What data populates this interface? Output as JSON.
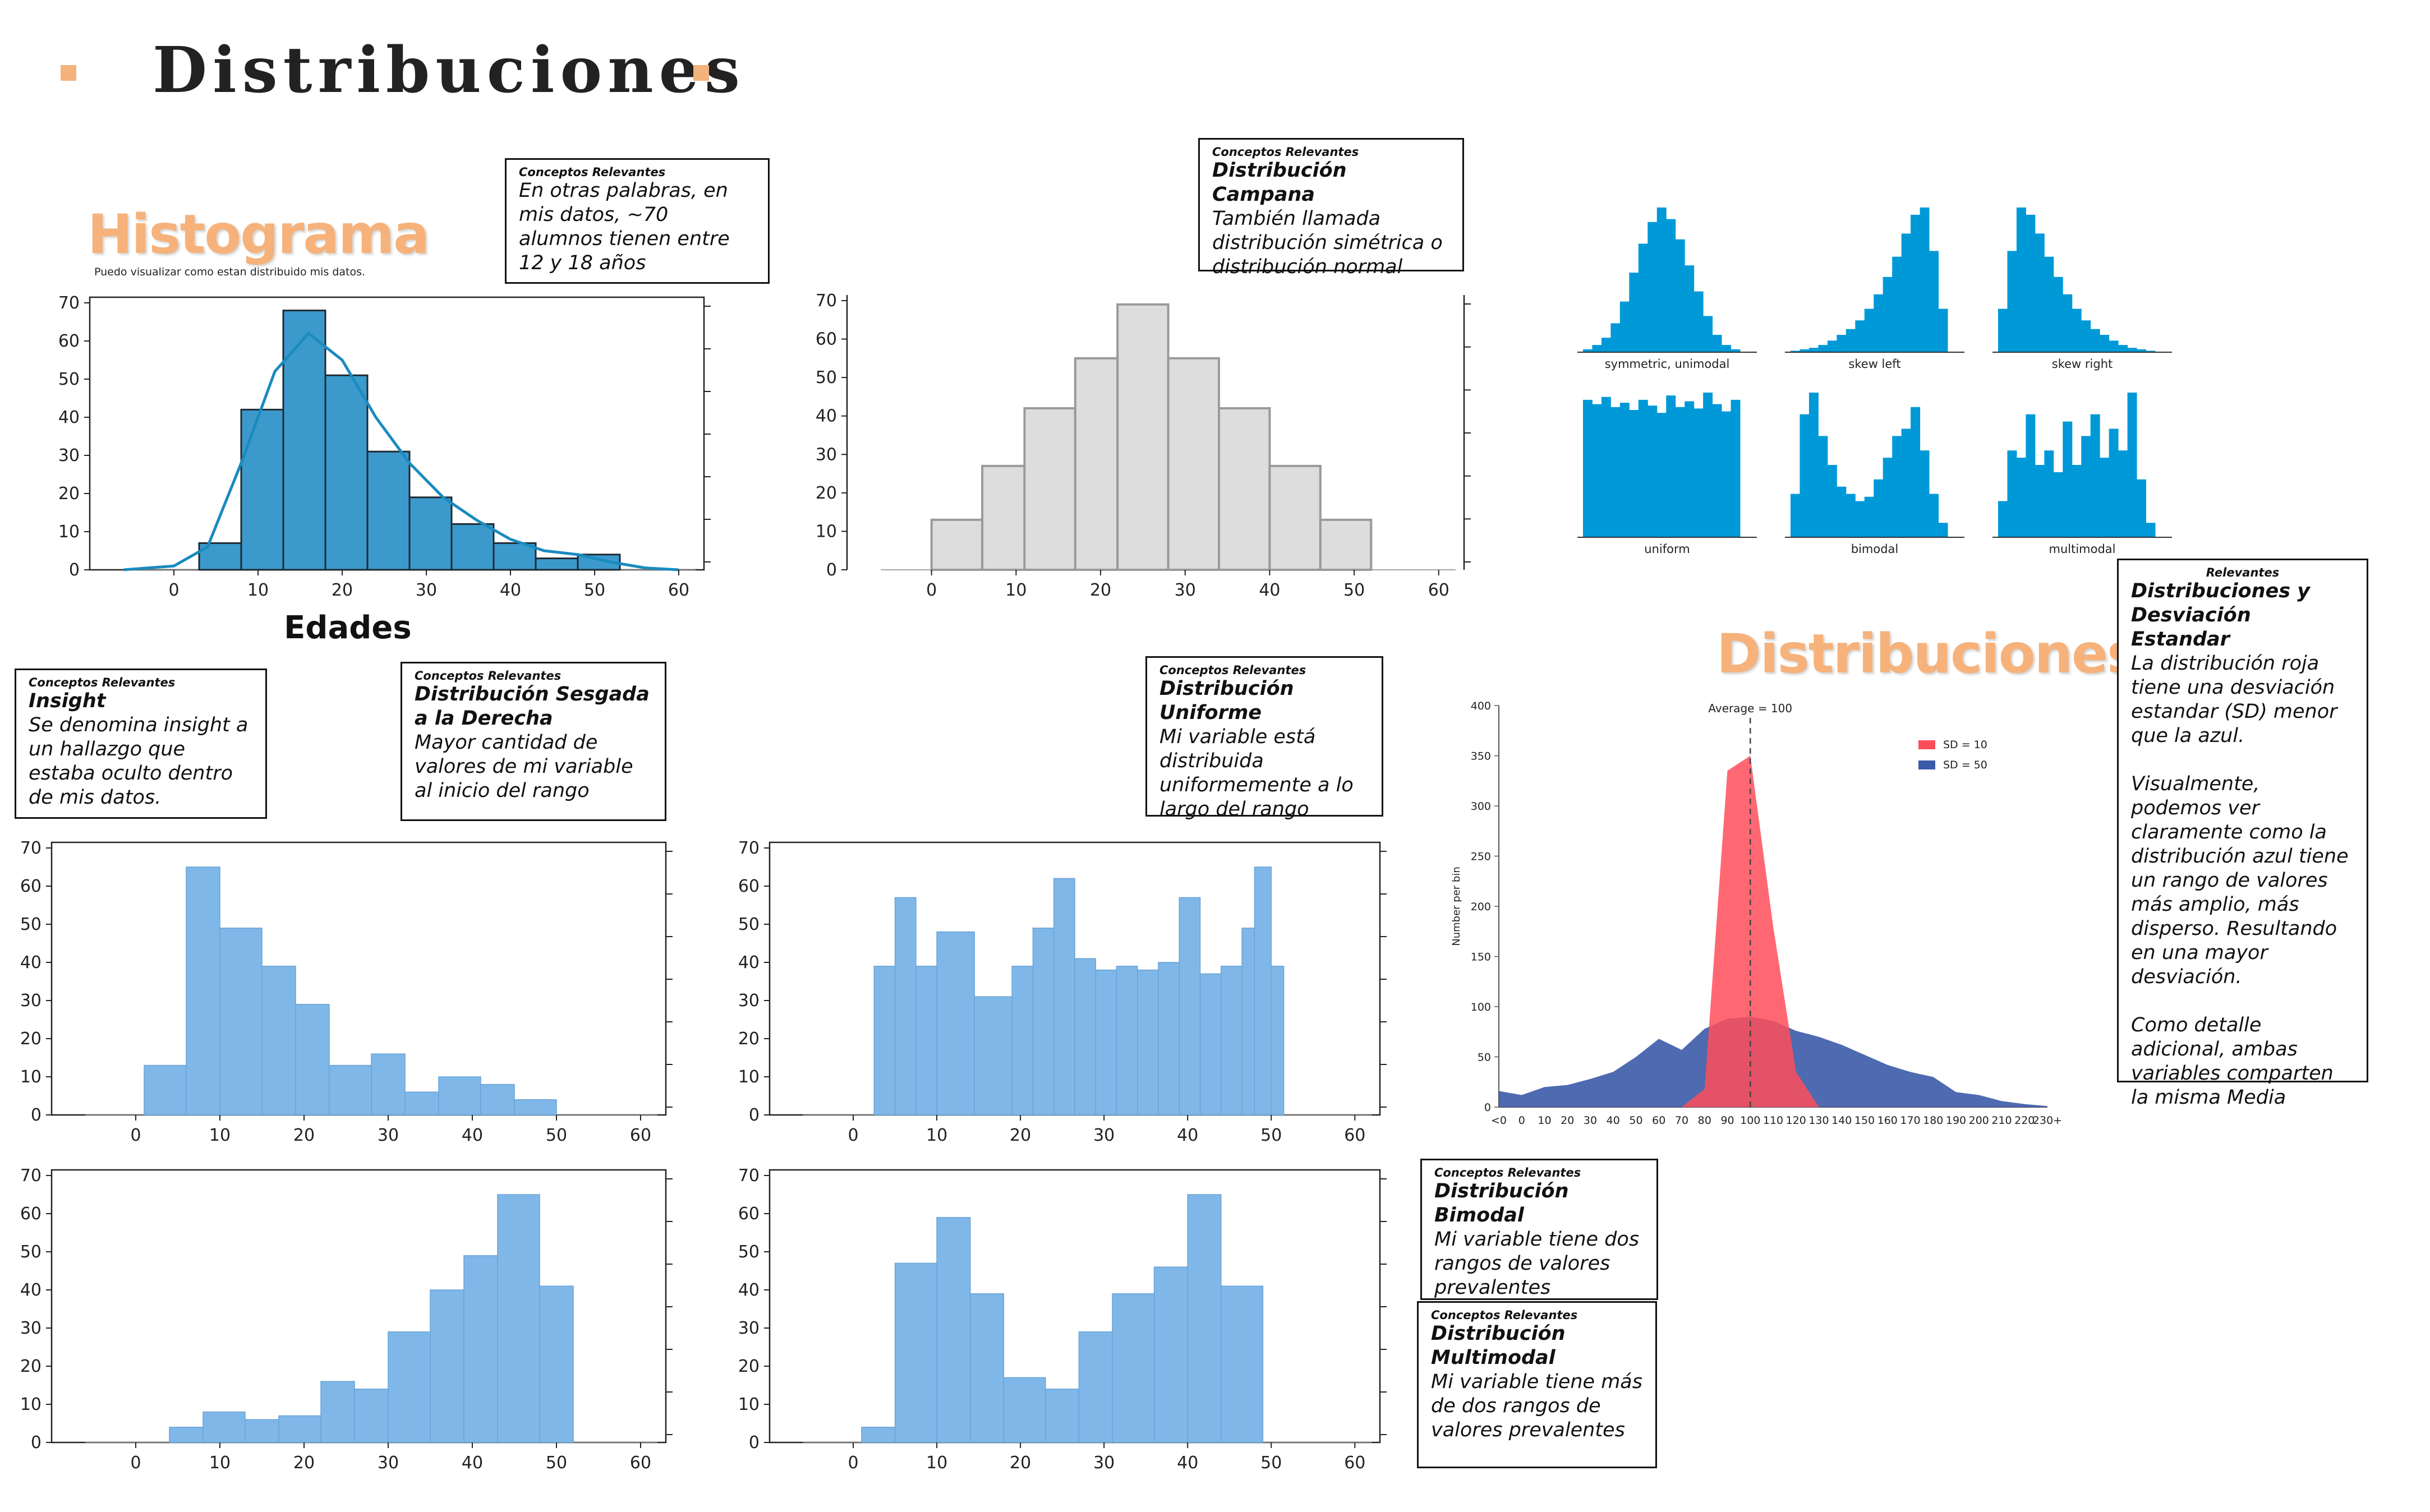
{
  "page": {
    "title": "Distribuciones"
  },
  "histogram_section": {
    "heading": "Histograma",
    "subtitle": "Puedo visualizar como estan distribuido mis datos."
  },
  "distributions_section": {
    "heading": "Distribuciones"
  },
  "boxes": {
    "histograma": {
      "label": "Conceptos Relevantes",
      "title": "",
      "text": "En otras palabras, en mis datos, ~70 alumnos tienen entre 12 y 18 años"
    },
    "campana": {
      "label": "Conceptos Relevantes",
      "title": "Distribución Campana",
      "text": "También llamada distribución simétrica o distribución normal"
    },
    "insight": {
      "label": "Conceptos Relevantes",
      "title": "Insight",
      "text": "Se denomina insight a un hallazgo que estaba oculto dentro de mis datos."
    },
    "sesgada": {
      "label": "Conceptos Relevantes",
      "title": "Distribución Sesgada a la Derecha",
      "text": "Mayor cantidad de valores de mi variable al inicio del rango"
    },
    "uniforme": {
      "label": "Conceptos Relevantes",
      "title": "Distribución Uniforme",
      "text": "Mi variable está distribuida uniformemente a lo largo del rango"
    },
    "bimodal": {
      "label": "Conceptos Relevantes",
      "title": "Distribución Bimodal",
      "text": "Mi variable tiene dos rangos de valores prevalentes"
    },
    "multimodal": {
      "label": "Conceptos Relevantes",
      "title": "Distribución Multimodal",
      "text": "Mi variable tiene más de dos rangos de valores prevalentes"
    },
    "desviacion": {
      "label": "Relevantes",
      "title": "Distribuciones y Desviación Estandar",
      "text": "La distribución roja tiene una desviación estandar (SD) menor que la azul.\n\nVisualmente,  podemos ver claramente como la distribución azul tiene un rango de valores más amplio, más disperso. Resultando en una mayor desviación.\n\nComo detalle adicional, ambas variables comparten la misma Media"
    }
  },
  "colors": {
    "accent_orange": "#f6b27a",
    "hist_blue": "#3b9acb",
    "light_blue": "#7fb8e8",
    "gray_bar": "#dddddd",
    "shape_blue": "#0099d8",
    "red": "#ff4d5a",
    "navy": "#3b5aa8"
  },
  "chart_data": [
    {
      "id": "histograma",
      "type": "bar",
      "xlabel": "Edades",
      "x_ticks": [
        0,
        10,
        20,
        30,
        40,
        50,
        60
      ],
      "y_ticks": [
        0,
        10,
        20,
        30,
        40,
        50,
        60,
        70
      ],
      "bins": [
        [
          3,
          8,
          7
        ],
        [
          8,
          13,
          42
        ],
        [
          13,
          18,
          68
        ],
        [
          18,
          23,
          51
        ],
        [
          23,
          28,
          31
        ],
        [
          28,
          33,
          19
        ],
        [
          33,
          38,
          12
        ],
        [
          38,
          43,
          7
        ],
        [
          43,
          48,
          3
        ],
        [
          48,
          53,
          4
        ]
      ],
      "kde": [
        [
          -6,
          0
        ],
        [
          0,
          1
        ],
        [
          4,
          6
        ],
        [
          8,
          28
        ],
        [
          12,
          52
        ],
        [
          16,
          62
        ],
        [
          20,
          55
        ],
        [
          24,
          40
        ],
        [
          28,
          28
        ],
        [
          32,
          19
        ],
        [
          36,
          13
        ],
        [
          40,
          8
        ],
        [
          44,
          5
        ],
        [
          48,
          4
        ],
        [
          52,
          2
        ],
        [
          56,
          0.5
        ],
        [
          60,
          0
        ]
      ]
    },
    {
      "id": "campana",
      "type": "bar",
      "x_ticks": [
        0,
        10,
        20,
        30,
        40,
        50,
        60
      ],
      "y_ticks": [
        0,
        10,
        20,
        30,
        40,
        50,
        60,
        70
      ],
      "bins": [
        [
          0,
          6,
          13
        ],
        [
          6,
          11,
          27
        ],
        [
          11,
          17,
          42
        ],
        [
          17,
          22,
          55
        ],
        [
          22,
          28,
          69
        ],
        [
          28,
          34,
          55
        ],
        [
          34,
          40,
          42
        ],
        [
          40,
          46,
          27
        ],
        [
          46,
          52,
          13
        ]
      ]
    },
    {
      "id": "sesgada",
      "type": "bar",
      "x_ticks": [
        0,
        10,
        20,
        30,
        40,
        50,
        60
      ],
      "y_ticks": [
        0,
        10,
        20,
        30,
        40,
        50,
        60,
        70
      ],
      "bins": [
        [
          1,
          6,
          13
        ],
        [
          6,
          10,
          65
        ],
        [
          10,
          15,
          49
        ],
        [
          15,
          19,
          39
        ],
        [
          19,
          23,
          29
        ],
        [
          23,
          28,
          13
        ],
        [
          28,
          32,
          16
        ],
        [
          32,
          36,
          6
        ],
        [
          36,
          41,
          10
        ],
        [
          41,
          45,
          8
        ],
        [
          45,
          50,
          4
        ]
      ]
    },
    {
      "id": "uniforme",
      "type": "bar",
      "x_ticks": [
        0,
        10,
        20,
        30,
        40,
        50,
        60
      ],
      "y_ticks": [
        0,
        10,
        20,
        30,
        40,
        50,
        60,
        70
      ],
      "bins": [
        [
          2.5,
          5,
          39
        ],
        [
          5,
          7.5,
          57
        ],
        [
          7.5,
          10,
          39
        ],
        [
          10,
          14.5,
          48
        ],
        [
          14.5,
          19,
          31
        ],
        [
          19,
          21.5,
          39
        ],
        [
          21.5,
          24,
          49
        ],
        [
          24,
          26.5,
          62
        ],
        [
          26.5,
          29,
          41
        ],
        [
          29,
          31.5,
          38
        ],
        [
          31.5,
          34,
          39
        ],
        [
          34,
          36.5,
          38
        ],
        [
          36.5,
          39,
          40
        ],
        [
          39,
          41.5,
          57
        ],
        [
          41.5,
          44,
          37
        ],
        [
          44,
          46.5,
          39
        ],
        [
          46.5,
          48,
          49
        ],
        [
          48,
          50,
          65
        ],
        [
          50,
          51.5,
          39
        ]
      ]
    },
    {
      "id": "sesgada_izquierda",
      "type": "bar",
      "x_ticks": [
        0,
        10,
        20,
        30,
        40,
        50,
        60
      ],
      "y_ticks": [
        0,
        10,
        20,
        30,
        40,
        50,
        60,
        70
      ],
      "bins": [
        [
          4,
          8,
          4
        ],
        [
          8,
          13,
          8
        ],
        [
          13,
          17,
          6
        ],
        [
          17,
          22,
          7
        ],
        [
          22,
          26,
          16
        ],
        [
          26,
          30,
          14
        ],
        [
          30,
          35,
          29
        ],
        [
          35,
          39,
          40
        ],
        [
          39,
          43,
          49
        ],
        [
          43,
          48,
          65
        ],
        [
          48,
          52,
          41
        ]
      ]
    },
    {
      "id": "bimodal",
      "type": "bar",
      "x_ticks": [
        0,
        10,
        20,
        30,
        40,
        50,
        60
      ],
      "y_ticks": [
        0,
        10,
        20,
        30,
        40,
        50,
        60,
        70
      ],
      "bins": [
        [
          1,
          5,
          4
        ],
        [
          5,
          10,
          47
        ],
        [
          10,
          14,
          59
        ],
        [
          14,
          18,
          39
        ],
        [
          18,
          23,
          17
        ],
        [
          23,
          27,
          14
        ],
        [
          27,
          31,
          29
        ],
        [
          31,
          36,
          39
        ],
        [
          36,
          40,
          46
        ],
        [
          40,
          44,
          65
        ],
        [
          44,
          49,
          41
        ]
      ]
    },
    {
      "id": "formas",
      "type": "bar",
      "panels": [
        {
          "label": "symmetric, unimodal",
          "values": [
            0.02,
            0.05,
            0.1,
            0.2,
            0.35,
            0.55,
            0.75,
            0.9,
            1.0,
            0.92,
            0.78,
            0.6,
            0.42,
            0.25,
            0.12,
            0.05,
            0.02
          ]
        },
        {
          "label": "skew left",
          "values": [
            0.01,
            0.02,
            0.03,
            0.05,
            0.08,
            0.12,
            0.16,
            0.22,
            0.3,
            0.4,
            0.52,
            0.66,
            0.82,
            0.95,
            1.0,
            0.7,
            0.3
          ]
        },
        {
          "label": "skew right",
          "values": [
            0.3,
            0.7,
            1.0,
            0.95,
            0.82,
            0.66,
            0.52,
            0.4,
            0.3,
            0.22,
            0.16,
            0.12,
            0.08,
            0.05,
            0.03,
            0.02,
            0.01
          ]
        },
        {
          "label": "uniform",
          "values": [
            0.95,
            0.92,
            0.97,
            0.9,
            0.93,
            0.88,
            0.95,
            0.91,
            0.86,
            0.98,
            0.9,
            0.94,
            0.89,
            1.0,
            0.92,
            0.87,
            0.95
          ]
        },
        {
          "label": "bimodal",
          "values": [
            0.3,
            0.85,
            1.0,
            0.7,
            0.5,
            0.35,
            0.3,
            0.25,
            0.28,
            0.4,
            0.55,
            0.7,
            0.75,
            0.9,
            0.6,
            0.3,
            0.1
          ]
        },
        {
          "label": "multimodal",
          "values": [
            0.25,
            0.6,
            0.55,
            0.85,
            0.5,
            0.6,
            0.45,
            0.8,
            0.5,
            0.7,
            0.85,
            0.55,
            0.75,
            0.6,
            1.0,
            0.4,
            0.1
          ]
        }
      ]
    },
    {
      "id": "desviacion",
      "type": "area",
      "ylabel": "Number per bin",
      "annotation": "Average = 100",
      "mean": 100,
      "x_ticks": [
        "<0",
        "0",
        "10",
        "20",
        "30",
        "40",
        "50",
        "60",
        "70",
        "80",
        "90",
        "100",
        "110",
        "120",
        "130",
        "140",
        "150",
        "160",
        "170",
        "180",
        "190",
        "200",
        "210",
        "220",
        "230+"
      ],
      "y_ticks": [
        0,
        50,
        100,
        150,
        200,
        250,
        300,
        350,
        400
      ],
      "ylim": [
        0,
        400
      ],
      "series": [
        {
          "name": "SD = 10",
          "color": "#ff4d5a",
          "x": [
            70,
            80,
            90,
            100,
            110,
            120,
            130
          ],
          "y": [
            0,
            18,
            335,
            350,
            180,
            35,
            0
          ]
        },
        {
          "name": "SD = 50",
          "color": "#3b5aa8",
          "x": [
            -10,
            0,
            10,
            20,
            30,
            40,
            50,
            60,
            70,
            80,
            90,
            100,
            110,
            120,
            130,
            140,
            150,
            160,
            170,
            180,
            190,
            200,
            210,
            220,
            230
          ],
          "y": [
            16,
            12,
            20,
            22,
            28,
            35,
            50,
            68,
            57,
            78,
            88,
            90,
            86,
            76,
            70,
            62,
            52,
            42,
            35,
            30,
            15,
            12,
            6,
            3,
            1
          ]
        }
      ],
      "legend": "top-right"
    }
  ]
}
